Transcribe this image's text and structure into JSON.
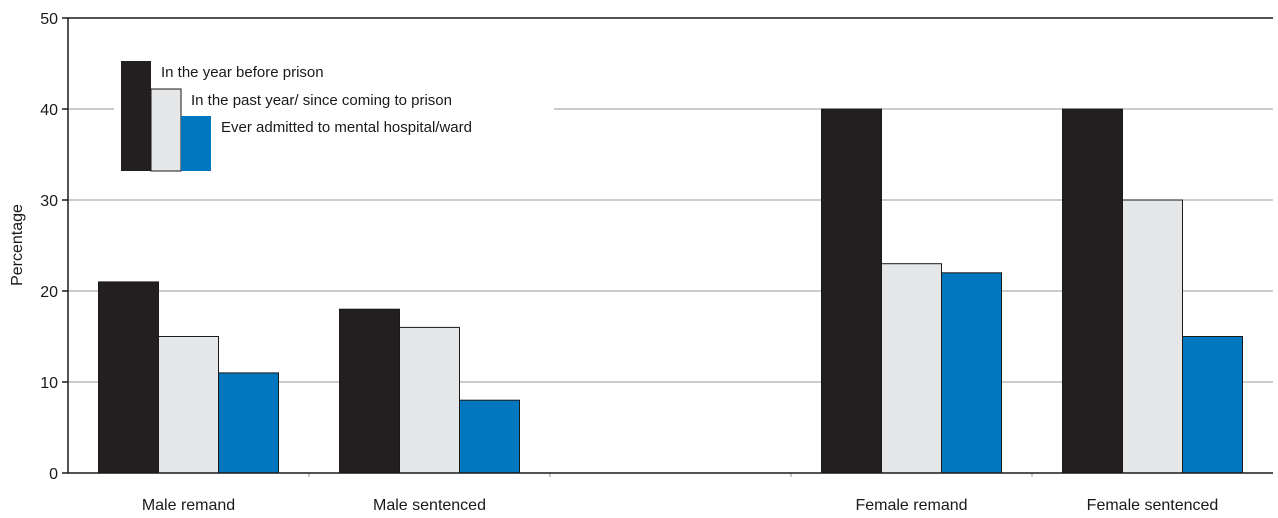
{
  "chart_data": {
    "type": "bar",
    "categories": [
      "Male remand",
      "Male sentenced",
      "",
      "Female remand",
      "Female sentenced"
    ],
    "series": [
      {
        "name": "In the year before prison",
        "values": [
          21,
          18,
          null,
          40,
          40
        ],
        "color": "#231f20"
      },
      {
        "name": "In the past year/ since coming to prison",
        "values": [
          15,
          16,
          null,
          23,
          30
        ],
        "color": "#e6e7e8"
      },
      {
        "name": "Ever admitted to mental hospital/ward",
        "values": [
          11,
          8,
          null,
          22,
          15
        ],
        "color": "#0077be"
      }
    ],
    "xlabel": "",
    "ylabel": "Percentage",
    "ylim": [
      0,
      50
    ],
    "yticks": [
      0,
      10,
      20,
      30,
      40,
      50
    ],
    "grid": true,
    "legend_position": "top-left"
  }
}
